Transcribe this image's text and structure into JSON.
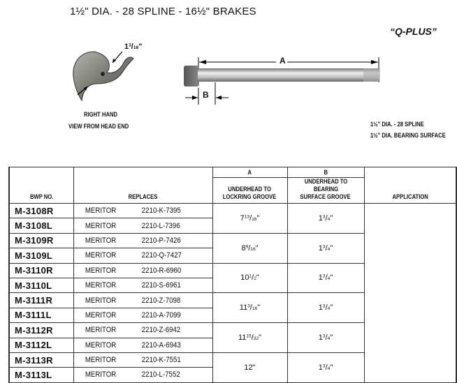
{
  "header": {
    "title": "1½\" DIA. - 28 SPLINE - 16½\" BRAKES",
    "series": "“Q-PLUS”"
  },
  "figure": {
    "cam_dimension": {
      "whole": "1",
      "num": "3",
      "den": "16",
      "unit": "\""
    },
    "cam_caption": [
      "RIGHT HAND",
      "VIEW FROM HEAD END"
    ],
    "label_a": "A",
    "label_b": "B",
    "spec_lines": [
      "1½\" DIA. - 28 SPLINE",
      "1½\" DIA. BEARING SURFACE"
    ]
  },
  "table": {
    "headers": {
      "bwp": "BWP NO.",
      "replaces": "REPLACES",
      "a": "A",
      "a_desc": [
        "UNDERHEAD TO",
        "LOCKRING GROOVE"
      ],
      "b": "B",
      "b_desc": [
        "UNDERHEAD TO BEARING",
        "SURFACE GROOVE"
      ],
      "application": "APPLICATION"
    },
    "groups": [
      {
        "a": {
          "w": "7",
          "n": "13",
          "d": "16"
        },
        "b": {
          "w": "1",
          "n": "3",
          "d": "4"
        },
        "rows": [
          {
            "bwp": "M-3108R",
            "make": "MERITOR",
            "part": "2210-K-7395"
          },
          {
            "bwp": "M-3108L",
            "make": "MERITOR",
            "part": "2210-L-7396"
          }
        ]
      },
      {
        "a": {
          "w": "8",
          "n": "9",
          "d": "16"
        },
        "b": {
          "w": "1",
          "n": "3",
          "d": "4"
        },
        "rows": [
          {
            "bwp": "M-3109R",
            "make": "MERITOR",
            "part": "2210-P-7426"
          },
          {
            "bwp": "M-3109L",
            "make": "MERITOR",
            "part": "2210-Q-7427"
          }
        ]
      },
      {
        "a": {
          "w": "10",
          "n": "1",
          "d": "2"
        },
        "b": {
          "w": "1",
          "n": "3",
          "d": "4"
        },
        "rows": [
          {
            "bwp": "M-3110R",
            "make": "MERITOR",
            "part": "2210-R-6960"
          },
          {
            "bwp": "M-3110L",
            "make": "MERITOR",
            "part": "2210-S-6961"
          }
        ]
      },
      {
        "a": {
          "w": "11",
          "n": "3",
          "d": "16"
        },
        "b": {
          "w": "1",
          "n": "3",
          "d": "4"
        },
        "rows": [
          {
            "bwp": "M-3111R",
            "make": "MERITOR",
            "part": "2210-Z-7098"
          },
          {
            "bwp": "M-3111L",
            "make": "MERITOR",
            "part": "2210-A-7099"
          }
        ]
      },
      {
        "a": {
          "w": "11",
          "n": "15",
          "d": "32"
        },
        "b": {
          "w": "1",
          "n": "3",
          "d": "4"
        },
        "rows": [
          {
            "bwp": "M-3112R",
            "make": "MERITOR",
            "part": "2210-Z-6942"
          },
          {
            "bwp": "M-3112L",
            "make": "MERITOR",
            "part": "2210-A-6943"
          }
        ]
      },
      {
        "a": {
          "w": "12",
          "n": "",
          "d": ""
        },
        "b": {
          "w": "1",
          "n": "3",
          "d": "4"
        },
        "rows": [
          {
            "bwp": "M-3113R",
            "make": "MERITOR",
            "part": "2210-K-7551"
          },
          {
            "bwp": "M-3113L",
            "make": "MERITOR",
            "part": "2210-L-7552"
          }
        ]
      }
    ]
  }
}
